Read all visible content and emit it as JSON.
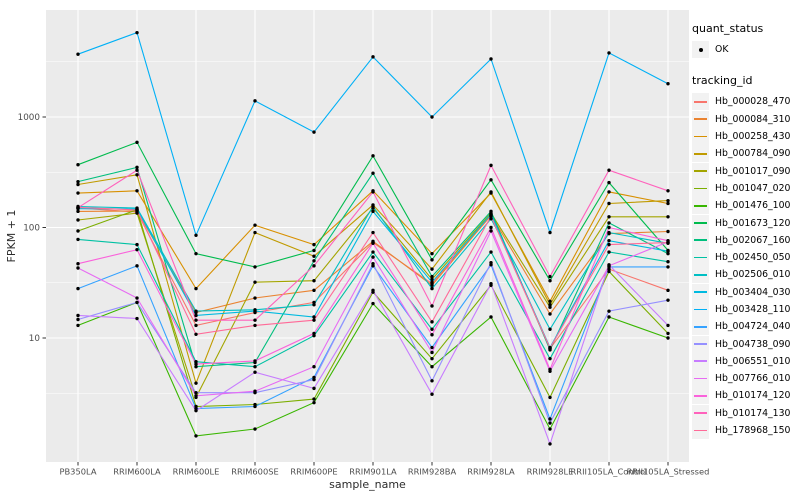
{
  "chart_data": {
    "type": "line",
    "title": "",
    "xlabel": "sample_name",
    "ylabel": "FPKM + 1",
    "y_scale": "log10",
    "y_ticks": [
      10,
      100,
      1000
    ],
    "y_minor_ticks": [
      3.162,
      31.62,
      316.2,
      3162
    ],
    "y_range": [
      0.75,
      9300
    ],
    "grid": "on",
    "legend_position": "right",
    "panel_bg": "#EBEBEB",
    "grid_color": "#FFFFFF",
    "point_color": "#000000",
    "tick_text_color": "#4D4D4D",
    "categories": [
      "PB350LA",
      "RRIM600LA",
      "RRIM600LE",
      "RRIM600SE",
      "RRIM600PE",
      "RRIM901LA",
      "RRIM928BA",
      "RRIM928LA",
      "RRIM928LE",
      "RRII105LA_Control",
      "RRII105LA_Stressed"
    ],
    "series": [
      {
        "name": "Hb_000028_470",
        "color": "#F8766D",
        "values": [
          150,
          138,
          13,
          17,
          21,
          73,
          31,
          128,
          8,
          42,
          27
        ]
      },
      {
        "name": "Hb_000084_310",
        "color": "#EA8331",
        "values": [
          140,
          141,
          17,
          23,
          27,
          75,
          30,
          130,
          16.5,
          88,
          92
        ]
      },
      {
        "name": "Hb_000258_430",
        "color": "#D89000",
        "values": [
          205,
          215,
          28,
          105,
          70,
          215,
          58,
          205,
          21.5,
          210,
          165
        ]
      },
      {
        "name": "Hb_000784_090",
        "color": "#C09B00",
        "values": [
          245,
          300,
          3.9,
          90,
          55,
          160,
          42,
          210,
          20,
          165,
          175
        ]
      },
      {
        "name": "Hb_001017_090",
        "color": "#A3A500",
        "values": [
          117,
          135,
          2.9,
          32,
          33,
          150,
          34,
          135,
          19,
          125,
          125
        ]
      },
      {
        "name": "Hb_001047_020",
        "color": "#7CAE00",
        "values": [
          93,
          145,
          2.4,
          2.5,
          2.8,
          26,
          6.5,
          30,
          2.9,
          40,
          11
        ]
      },
      {
        "name": "Hb_001476_100",
        "color": "#39B600",
        "values": [
          13,
          21,
          1.3,
          1.5,
          2.6,
          20.5,
          5.5,
          15.5,
          1.5,
          15.5,
          10
        ]
      },
      {
        "name": "Hb_001673_120",
        "color": "#00BB4E",
        "values": [
          370,
          590,
          58,
          44,
          62,
          445,
          51,
          270,
          33,
          255,
          62
        ]
      },
      {
        "name": "Hb_002067_160",
        "color": "#00BF7D",
        "values": [
          260,
          350,
          5.5,
          6,
          50,
          310,
          36,
          140,
          7.8,
          110,
          58
        ]
      },
      {
        "name": "Hb_002450_050",
        "color": "#00C1A3",
        "values": [
          78,
          70,
          6.1,
          5.5,
          10.5,
          60,
          12,
          60,
          6.5,
          60,
          49
        ]
      },
      {
        "name": "Hb_002506_010",
        "color": "#00BFC4",
        "values": [
          155,
          150,
          17.5,
          18,
          20,
          155,
          28,
          120,
          12,
          90,
          72
        ]
      },
      {
        "name": "Hb_003404_030",
        "color": "#00BAE0",
        "values": [
          148,
          147,
          16,
          17.5,
          15.5,
          140,
          32,
          132,
          8.2,
          76,
          61
        ]
      },
      {
        "name": "Hb_003428_110",
        "color": "#00B0F6",
        "values": [
          3700,
          5800,
          85,
          1400,
          730,
          3500,
          1000,
          3350,
          90,
          3800,
          2000
        ]
      },
      {
        "name": "Hb_004724_040",
        "color": "#35A2FF",
        "values": [
          28,
          45,
          2.3,
          2.4,
          4.4,
          45,
          8.2,
          46,
          1.85,
          44,
          44
        ]
      },
      {
        "name": "Hb_004738_090",
        "color": "#9590FF",
        "values": [
          14.7,
          21,
          3.2,
          3.2,
          4.2,
          47,
          4.1,
          48,
          1.7,
          17.5,
          22
        ]
      },
      {
        "name": "Hb_006551_010",
        "color": "#C77CFF",
        "values": [
          16,
          15,
          2.2,
          4.9,
          3.5,
          27,
          3.1,
          31,
          1.1,
          46,
          13
        ]
      },
      {
        "name": "Hb_007766_010",
        "color": "#E76BF3",
        "values": [
          43,
          23,
          3,
          3.3,
          5.5,
          54,
          7.4,
          93,
          5,
          45,
          74
        ]
      },
      {
        "name": "Hb_010174_120",
        "color": "#FA62DB",
        "values": [
          47,
          63,
          5.8,
          6.2,
          11,
          72,
          10.7,
          100,
          5.2,
          100,
          76
        ]
      },
      {
        "name": "Hb_010174_130",
        "color": "#FF62BC",
        "values": [
          151,
          330,
          14.5,
          14.5,
          45,
          210,
          19.5,
          365,
          36,
          330,
          215
        ]
      },
      {
        "name": "Hb_178968_150",
        "color": "#FF6A98",
        "values": [
          152,
          144,
          10.8,
          13,
          14.5,
          90,
          14,
          126,
          8.1,
          70,
          73
        ]
      }
    ]
  },
  "legend": {
    "quant_status": {
      "title": "quant_status",
      "items": [
        "OK"
      ]
    },
    "tracking_id_title": "tracking_id"
  }
}
